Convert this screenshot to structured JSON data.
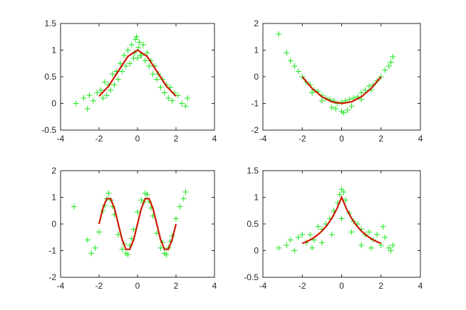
{
  "figure": {
    "marker": "+",
    "scatter_color": "#19e619",
    "fit_color": "#cc1a00"
  },
  "chart_data": [
    {
      "type": "scatter",
      "title": "",
      "xlabel": "",
      "ylabel": "",
      "xlim": [
        -4,
        4
      ],
      "ylim": [
        -0.5,
        1.5
      ],
      "xticks": [
        -4,
        -2,
        0,
        2,
        4
      ],
      "yticks": [
        -0.5,
        0,
        0.5,
        1,
        1.5
      ],
      "xtick_labels": [
        "-4",
        "-2",
        "0",
        "2",
        "4"
      ],
      "ytick_labels": [
        "-0.5",
        "0",
        "0.5",
        "1",
        "1.5"
      ],
      "grid": false,
      "legend": "none",
      "series": [
        {
          "kind": "scatter",
          "x": [
            -3.2,
            -2.8,
            -2.6,
            -2.5,
            -2.3,
            -2.1,
            -1.9,
            -1.7,
            -1.5,
            -1.3,
            -1.1,
            -0.9,
            -0.7,
            -0.5,
            -0.3,
            -0.1,
            0.1,
            0.3,
            0.5,
            0.7,
            0.9,
            1.1,
            1.3,
            1.5,
            1.7,
            1.9,
            2.1,
            2.3,
            2.5,
            2.6,
            -1.8,
            -1.4,
            -1.0,
            -0.6,
            -0.2,
            0.2,
            0.6,
            1.0,
            1.4,
            1.8,
            -1.6,
            -1.2,
            -0.8,
            -0.4,
            0.0,
            0.4,
            0.8,
            1.2,
            1.6,
            -0.05,
            0.05,
            0.15,
            -0.15
          ],
          "y": [
            0.0,
            0.1,
            -0.1,
            0.15,
            0.05,
            0.2,
            0.25,
            0.4,
            0.35,
            0.55,
            0.6,
            0.75,
            0.9,
            1.0,
            1.1,
            1.2,
            1.15,
            1.1,
            0.95,
            0.8,
            0.7,
            0.55,
            0.45,
            0.35,
            0.3,
            0.2,
            0.15,
            0.0,
            -0.05,
            0.1,
            0.1,
            0.25,
            0.45,
            0.7,
            0.85,
            0.9,
            0.7,
            0.45,
            0.2,
            0.05,
            0.15,
            0.35,
            0.6,
            0.75,
            0.85,
            0.8,
            0.55,
            0.3,
            0.1,
            1.25,
            1.05,
            0.9,
            0.95
          ]
        },
        {
          "kind": "line",
          "x": [
            -2.0,
            -1.5,
            -1.0,
            -0.5,
            0.0,
            0.5,
            1.0,
            1.5,
            2.0
          ],
          "y": [
            0.135,
            0.325,
            0.607,
            0.882,
            1.0,
            0.882,
            0.607,
            0.325,
            0.135
          ]
        }
      ]
    },
    {
      "type": "scatter",
      "title": "",
      "xlabel": "",
      "ylabel": "",
      "xlim": [
        -4,
        4
      ],
      "ylim": [
        -2,
        2
      ],
      "xticks": [
        -4,
        -2,
        0,
        2,
        4
      ],
      "yticks": [
        -2,
        -1,
        0,
        1,
        2
      ],
      "xtick_labels": [
        "-4",
        "-2",
        "0",
        "2",
        "4"
      ],
      "ytick_labels": [
        "-2",
        "-1",
        "0",
        "1",
        "2"
      ],
      "grid": false,
      "legend": "none",
      "series": [
        {
          "kind": "scatter",
          "x": [
            -3.2,
            -2.8,
            -2.6,
            -2.4,
            -2.2,
            -2.0,
            -1.8,
            -1.6,
            -1.4,
            -1.2,
            -1.0,
            -0.8,
            -0.6,
            -0.4,
            -0.2,
            0.0,
            0.2,
            0.4,
            0.6,
            0.8,
            1.0,
            1.2,
            1.4,
            1.6,
            1.8,
            2.0,
            2.2,
            2.4,
            2.5,
            2.6,
            -1.5,
            -1.0,
            -0.5,
            0.0,
            0.5,
            1.0,
            1.5,
            -0.3,
            0.3,
            0.1
          ],
          "y": [
            1.6,
            0.9,
            0.6,
            0.4,
            0.2,
            0.0,
            -0.2,
            -0.3,
            -0.5,
            -0.55,
            -0.7,
            -0.8,
            -0.85,
            -0.9,
            -1.0,
            -0.95,
            -0.9,
            -0.85,
            -0.8,
            -0.75,
            -0.6,
            -0.5,
            -0.35,
            -0.3,
            -0.15,
            0.0,
            0.25,
            0.4,
            0.55,
            0.75,
            -0.6,
            -0.9,
            -1.15,
            -1.3,
            -1.1,
            -0.85,
            -0.5,
            -1.2,
            -1.25,
            -1.35
          ]
        },
        {
          "kind": "line",
          "x": [
            -2.0,
            -1.5,
            -1.0,
            -0.5,
            0.0,
            0.5,
            1.0,
            1.5,
            2.0
          ],
          "y": [
            0.0,
            -0.4375,
            -0.75,
            -0.9375,
            -1.0,
            -0.9375,
            -0.75,
            -0.4375,
            0.0
          ]
        }
      ]
    },
    {
      "type": "scatter",
      "title": "",
      "xlabel": "",
      "ylabel": "",
      "xlim": [
        -4,
        4
      ],
      "ylim": [
        -2,
        2
      ],
      "xticks": [
        -4,
        -2,
        0,
        2,
        4
      ],
      "yticks": [
        -2,
        -1,
        0,
        1,
        2
      ],
      "xtick_labels": [
        "-4",
        "-2",
        "0",
        "2",
        "4"
      ],
      "ytick_labels": [
        "-2",
        "-1",
        "0",
        "1",
        "2"
      ],
      "grid": false,
      "legend": "none",
      "series": [
        {
          "kind": "scatter",
          "x": [
            -3.3,
            -2.6,
            -2.4,
            -2.2,
            -2.0,
            -1.8,
            -1.6,
            -1.5,
            -1.4,
            -1.2,
            -1.0,
            -0.8,
            -0.6,
            -0.5,
            -0.4,
            -0.2,
            0.0,
            0.2,
            0.4,
            0.5,
            0.6,
            0.8,
            1.0,
            1.2,
            1.4,
            1.5,
            1.6,
            1.8,
            2.0,
            2.2,
            2.4,
            2.5,
            -1.7,
            -1.3,
            -0.7,
            -0.3,
            0.3,
            0.7,
            1.3,
            1.7
          ],
          "y": [
            0.65,
            -0.6,
            -1.1,
            -0.9,
            -0.3,
            0.5,
            0.95,
            1.15,
            0.9,
            0.35,
            -0.4,
            -0.95,
            -1.1,
            -1.15,
            -0.8,
            -0.2,
            0.45,
            0.9,
            1.15,
            1.1,
            0.85,
            0.3,
            -0.35,
            -0.9,
            -1.1,
            -1.15,
            -0.9,
            -0.45,
            0.2,
            0.65,
            0.95,
            1.2,
            0.7,
            0.65,
            -0.75,
            -0.55,
            0.8,
            0.6,
            -0.7,
            -0.65
          ]
        },
        {
          "kind": "line",
          "x": [
            -2.0,
            -1.8,
            -1.6,
            -1.4,
            -1.2,
            -1.0,
            -0.8,
            -0.6,
            -0.4,
            -0.2,
            0.0,
            0.2,
            0.4,
            0.6,
            0.8,
            1.0,
            1.2,
            1.4,
            1.6,
            1.8,
            2.0
          ],
          "y": [
            0.0,
            0.588,
            0.951,
            0.951,
            0.588,
            0.0,
            -0.588,
            -0.951,
            -0.951,
            -0.588,
            0.0,
            0.588,
            0.951,
            0.951,
            0.588,
            0.0,
            -0.588,
            -0.951,
            -0.951,
            -0.588,
            0.0
          ]
        }
      ]
    },
    {
      "type": "scatter",
      "title": "",
      "xlabel": "",
      "ylabel": "",
      "xlim": [
        -4,
        4
      ],
      "ylim": [
        -0.5,
        1.5
      ],
      "xticks": [
        -4,
        -2,
        0,
        2,
        4
      ],
      "yticks": [
        -0.5,
        0,
        0.5,
        1,
        1.5
      ],
      "xtick_labels": [
        "-4",
        "-2",
        "0",
        "2",
        "4"
      ],
      "ytick_labels": [
        "-0.5",
        "0",
        "0.5",
        "1",
        "1.5"
      ],
      "grid": false,
      "legend": "none",
      "series": [
        {
          "kind": "scatter",
          "x": [
            -3.2,
            -2.8,
            -2.6,
            -2.4,
            -2.2,
            -2.0,
            -1.8,
            -1.6,
            -1.4,
            -1.2,
            -1.0,
            -0.8,
            -0.6,
            -0.4,
            -0.2,
            0.0,
            0.2,
            0.4,
            0.6,
            0.8,
            1.0,
            1.2,
            1.4,
            1.6,
            1.8,
            2.0,
            2.2,
            2.4,
            2.5,
            2.6,
            -1.5,
            -1.0,
            -0.5,
            0.0,
            0.5,
            1.0,
            1.5,
            -0.1,
            0.1,
            2.1
          ],
          "y": [
            0.05,
            0.1,
            0.2,
            0.0,
            0.25,
            0.3,
            0.15,
            0.3,
            0.2,
            0.45,
            0.4,
            0.5,
            0.6,
            0.75,
            0.9,
            1.15,
            0.95,
            0.7,
            0.55,
            0.5,
            0.4,
            0.3,
            0.35,
            0.2,
            0.3,
            0.1,
            0.25,
            0.05,
            0.0,
            0.1,
            0.05,
            0.15,
            0.3,
            0.6,
            0.35,
            0.1,
            0.05,
            1.05,
            1.1,
            0.45
          ]
        },
        {
          "kind": "line",
          "x": [
            -2.0,
            -1.75,
            -1.5,
            -1.25,
            -1.0,
            -0.75,
            -0.5,
            -0.25,
            0.0,
            0.25,
            0.5,
            0.75,
            1.0,
            1.25,
            1.5,
            1.75,
            2.0
          ],
          "y": [
            0.135,
            0.174,
            0.223,
            0.287,
            0.368,
            0.472,
            0.607,
            0.779,
            1.0,
            0.779,
            0.607,
            0.472,
            0.368,
            0.287,
            0.223,
            0.174,
            0.135
          ]
        }
      ]
    }
  ]
}
